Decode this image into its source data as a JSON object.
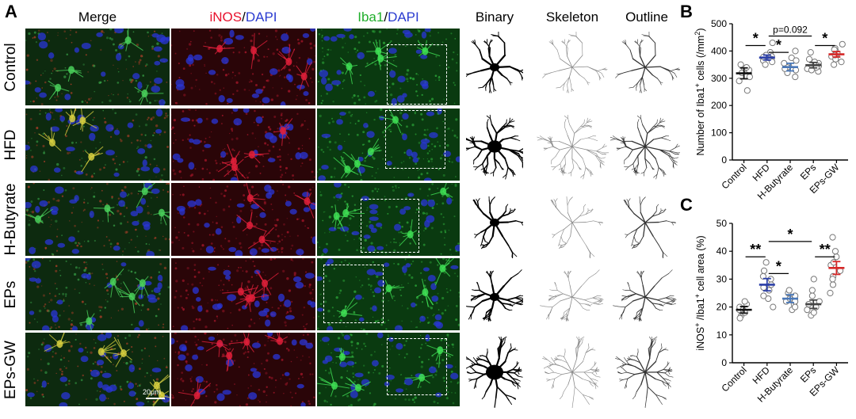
{
  "panels": {
    "a": "A",
    "b": "B",
    "c": "C"
  },
  "columns": {
    "merge": "Merge",
    "inos_label": "iNOS",
    "slash": "/",
    "dapi": "DAPI",
    "iba1_label": "Iba1",
    "binary": "Binary",
    "skeleton": "Skeleton",
    "outline": "Outline"
  },
  "rows": [
    "Control",
    "HFD",
    "H-Butyrate",
    "EPs",
    "EPs-GW"
  ],
  "scale_bar": "20μm",
  "colors": {
    "control": "#111111",
    "hfd": "#2b3fa8",
    "hbutyrate": "#4a78b8",
    "eps": "#444444",
    "epsgw": "#d62828",
    "merge_bg": "#0d2a0f",
    "inos_bg": "#2a0508",
    "iba1_bg": "#0a3a10"
  },
  "chart_data": [
    {
      "type": "scatter",
      "panel": "B",
      "ylabel_parts": {
        "pre": "Number of Iba1",
        "sup": "+",
        "mid": " cells (/mm",
        "sup2": "2",
        "post": ")"
      },
      "categories": [
        "Control",
        "HFD",
        "H-Butyrate",
        "EPs",
        "EPs-GW"
      ],
      "ylim": [
        0,
        500
      ],
      "yticks": [
        0,
        100,
        200,
        300,
        400,
        500
      ],
      "means": [
        318,
        376,
        341,
        348,
        388
      ],
      "sem": [
        20,
        9,
        14,
        10,
        10
      ],
      "points": [
        [
          350,
          335,
          320,
          305,
          255,
          290,
          330,
          340
        ],
        [
          430,
          395,
          380,
          375,
          370,
          365,
          360,
          350,
          385,
          378
        ],
        [
          375,
          365,
          345,
          340,
          330,
          320,
          305,
          355,
          335,
          400
        ],
        [
          395,
          370,
          355,
          345,
          335,
          330,
          325,
          350,
          340,
          360
        ],
        [
          425,
          410,
          400,
          390,
          380,
          370,
          360,
          405,
          385,
          350
        ]
      ],
      "annotations": [
        {
          "from": 0,
          "to": 1,
          "text": "*",
          "y": 420
        },
        {
          "from": 1,
          "to": 2,
          "text": "*",
          "y": 395
        },
        {
          "from": 1,
          "to": 3,
          "text": "p=0.092",
          "y": 455
        },
        {
          "from": 3,
          "to": 4,
          "text": "*",
          "y": 420
        }
      ]
    },
    {
      "type": "scatter",
      "panel": "C",
      "ylabel_parts": {
        "pre": "iNOS",
        "sup": "+",
        "mid": " /Iba1",
        "sup2": "+",
        "post": " cell area (%)"
      },
      "categories": [
        "Control",
        "HFD",
        "H-Butyrate",
        "EPs",
        "EPs-GW"
      ],
      "ylim": [
        0,
        50
      ],
      "yticks": [
        0,
        10,
        20,
        30,
        40,
        50
      ],
      "means": [
        19,
        28,
        23,
        21,
        34
      ],
      "sem": [
        1.2,
        2.2,
        1.4,
        1.5,
        2.3
      ],
      "points": [
        [
          17,
          18,
          19,
          20,
          21,
          16,
          19,
          22,
          18
        ],
        [
          20,
          23,
          26,
          28,
          30,
          33,
          36,
          24,
          27,
          31
        ],
        [
          19,
          21,
          22,
          23,
          24,
          25,
          26,
          22,
          20
        ],
        [
          17,
          19,
          20,
          21,
          22,
          24,
          26,
          30,
          18
        ],
        [
          25,
          28,
          31,
          33,
          35,
          38,
          40,
          45,
          30,
          36
        ]
      ],
      "annotations": [
        {
          "from": 0,
          "to": 1,
          "text": "**",
          "y": 38
        },
        {
          "from": 1,
          "to": 2,
          "text": "*",
          "y": 32
        },
        {
          "from": 1,
          "to": 3,
          "text": "*",
          "y": 43.5
        },
        {
          "from": 3,
          "to": 4,
          "text": "**",
          "y": 38
        }
      ]
    }
  ]
}
